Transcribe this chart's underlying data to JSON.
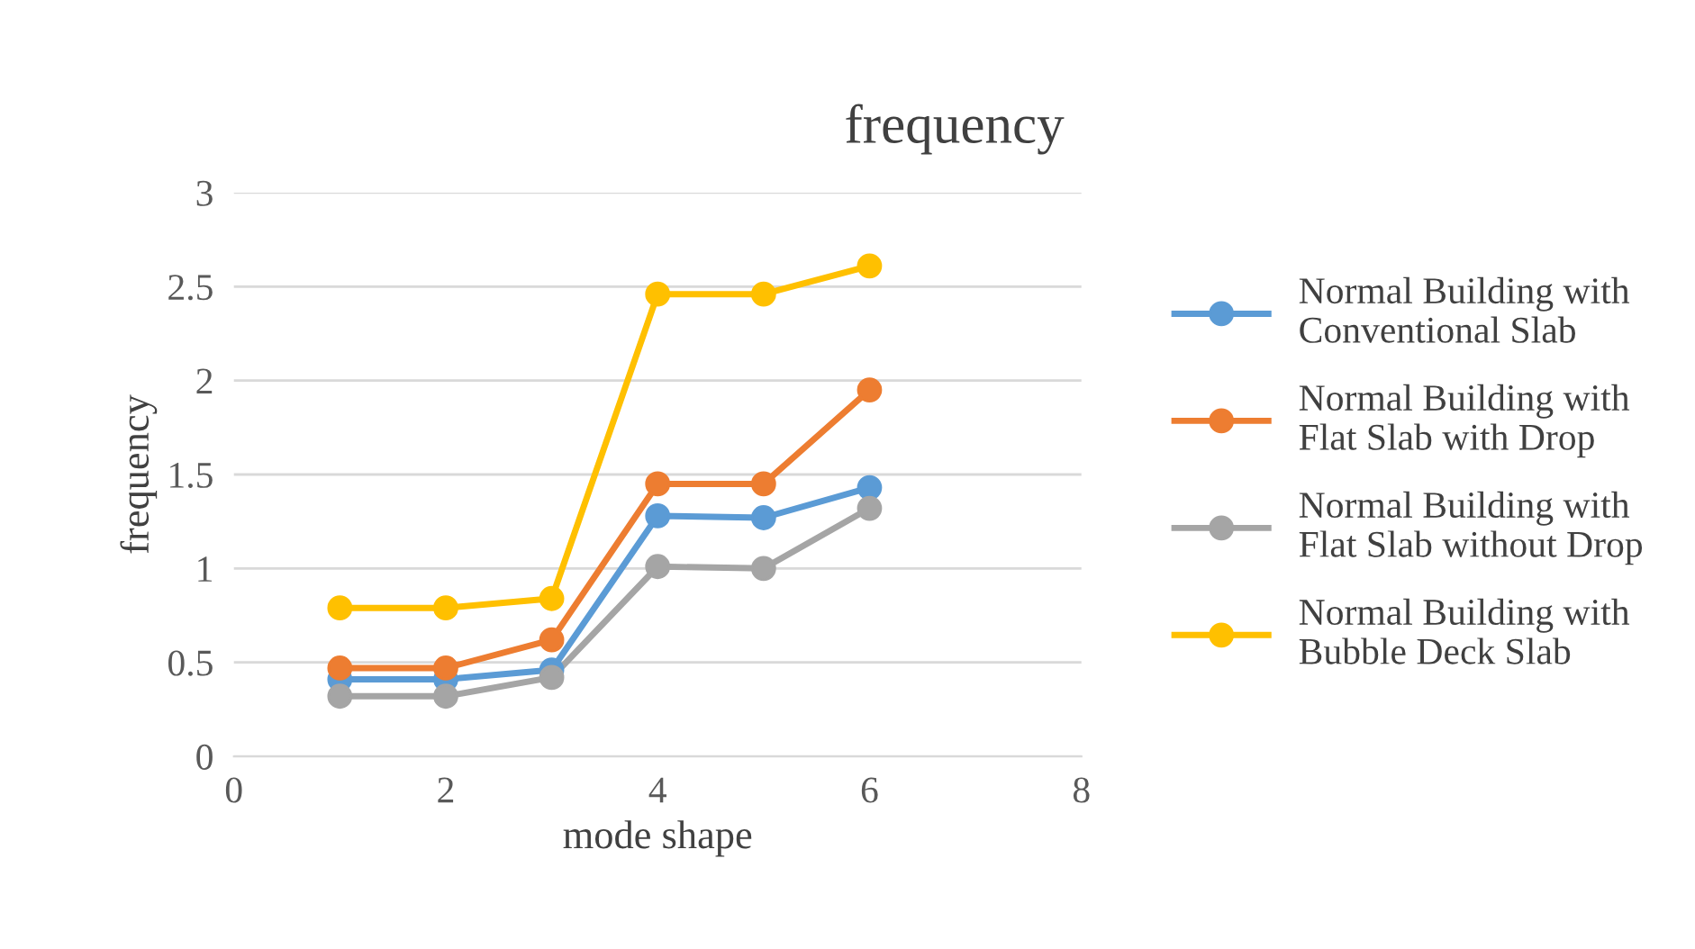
{
  "chart_data": {
    "type": "line",
    "title": "frequency",
    "xlabel": "mode shape",
    "ylabel": "frequency",
    "x": [
      1,
      2,
      3,
      4,
      5,
      6
    ],
    "series": [
      {
        "name": "Normal Building with\nConventional Slab",
        "color": "#5b9bd5",
        "values": [
          0.41,
          0.41,
          0.46,
          1.28,
          1.27,
          1.43
        ]
      },
      {
        "name": "Normal Building with\nFlat Slab with Drop",
        "color": "#ed7d31",
        "values": [
          0.47,
          0.47,
          0.62,
          1.45,
          1.45,
          1.95
        ]
      },
      {
        "name": "Normal Building with\nFlat Slab without Drop",
        "color": "#a5a5a5",
        "values": [
          0.32,
          0.32,
          0.42,
          1.01,
          1.0,
          1.32
        ]
      },
      {
        "name": "Normal Building with\nBubble Deck Slab",
        "color": "#ffc000",
        "values": [
          0.79,
          0.79,
          0.84,
          2.46,
          2.46,
          2.61
        ]
      }
    ],
    "xlim": [
      0,
      8
    ],
    "xticks": [
      0,
      2,
      4,
      6,
      8
    ],
    "ylim": [
      0,
      3
    ],
    "yticks": [
      0,
      0.5,
      1,
      1.5,
      2,
      2.5,
      3
    ],
    "grid": "y",
    "legend": "right",
    "marker": "circle",
    "line_style": "solid"
  }
}
